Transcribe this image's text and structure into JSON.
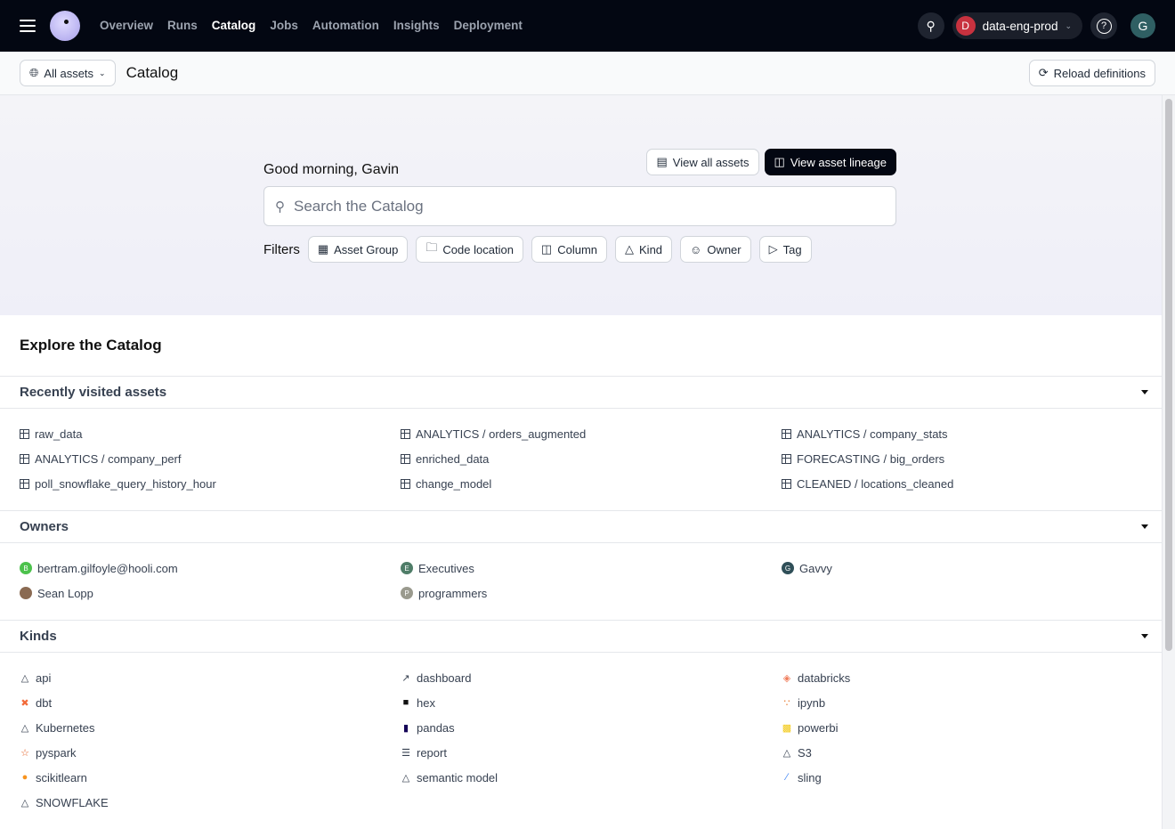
{
  "topnav": {
    "items": [
      "Overview",
      "Runs",
      "Catalog",
      "Jobs",
      "Automation",
      "Insights",
      "Deployment"
    ],
    "active": "Catalog",
    "deployment": "data-eng-prod",
    "deployment_initial": "D",
    "user_initial": "G"
  },
  "subheader": {
    "scope": "All assets",
    "title": "Catalog",
    "reload": "Reload definitions"
  },
  "hero": {
    "greeting": "Good morning, Gavin",
    "view_all": "View all assets",
    "view_lineage": "View asset lineage",
    "search_placeholder": "Search the Catalog",
    "filters_label": "Filters",
    "filters": [
      "Asset Group",
      "Code location",
      "Column",
      "Kind",
      "Owner",
      "Tag"
    ]
  },
  "explore": {
    "title": "Explore the Catalog"
  },
  "sections": [
    {
      "title": "Recently visited assets",
      "items": [
        {
          "label": "raw_data",
          "icon": "table"
        },
        {
          "label": "ANALYTICS / orders_augmented",
          "icon": "table"
        },
        {
          "label": "ANALYTICS / company_stats",
          "icon": "table"
        },
        {
          "label": "ANALYTICS / company_perf",
          "icon": "table"
        },
        {
          "label": "enriched_data",
          "icon": "table"
        },
        {
          "label": "FORECASTING / big_orders",
          "icon": "table"
        },
        {
          "label": "poll_snowflake_query_history_hour",
          "icon": "table"
        },
        {
          "label": "change_model",
          "icon": "table"
        },
        {
          "label": "CLEANED / locations_cleaned",
          "icon": "table"
        }
      ]
    },
    {
      "title": "Owners",
      "items": [
        {
          "label": "bertram.gilfoyle@hooli.com",
          "icon": "avatar",
          "initial": "B",
          "color": "#4cc24c"
        },
        {
          "label": "Executives",
          "icon": "avatar",
          "initial": "E",
          "color": "#4f7d68"
        },
        {
          "label": "Gavvy",
          "icon": "avatar",
          "initial": "G",
          "color": "#2f4f58"
        },
        {
          "label": "Sean Lopp",
          "icon": "photo",
          "initial": "",
          "color": "#8a6a52"
        },
        {
          "label": "programmers",
          "icon": "avatar",
          "initial": "P",
          "color": "#9a9a8e"
        }
      ]
    },
    {
      "title": "Kinds",
      "items": [
        {
          "label": "api",
          "icon": "shapes",
          "color": "#374151"
        },
        {
          "label": "dashboard",
          "icon": "dashboard",
          "color": "#374151"
        },
        {
          "label": "databricks",
          "icon": "databricks",
          "color": "#f07c5a"
        },
        {
          "label": "dbt",
          "icon": "dbt",
          "color": "#f26b3a"
        },
        {
          "label": "hex",
          "icon": "hex",
          "color": "#111111"
        },
        {
          "label": "ipynb",
          "icon": "ipynb",
          "color": "#e8782b"
        },
        {
          "label": "Kubernetes",
          "icon": "shapes",
          "color": "#374151"
        },
        {
          "label": "pandas",
          "icon": "pandas",
          "color": "#150458"
        },
        {
          "label": "powerbi",
          "icon": "powerbi",
          "color": "#f2c811"
        },
        {
          "label": "pyspark",
          "icon": "pyspark",
          "color": "#e25a1c"
        },
        {
          "label": "report",
          "icon": "report",
          "color": "#374151"
        },
        {
          "label": "S3",
          "icon": "shapes",
          "color": "#374151"
        },
        {
          "label": "scikitlearn",
          "icon": "scikitlearn",
          "color": "#f7931e"
        },
        {
          "label": "semantic model",
          "icon": "shapes",
          "color": "#374151"
        },
        {
          "label": "sling",
          "icon": "sling",
          "color": "#3b82f6"
        },
        {
          "label": "SNOWFLAKE",
          "icon": "shapes",
          "color": "#374151"
        }
      ]
    }
  ]
}
